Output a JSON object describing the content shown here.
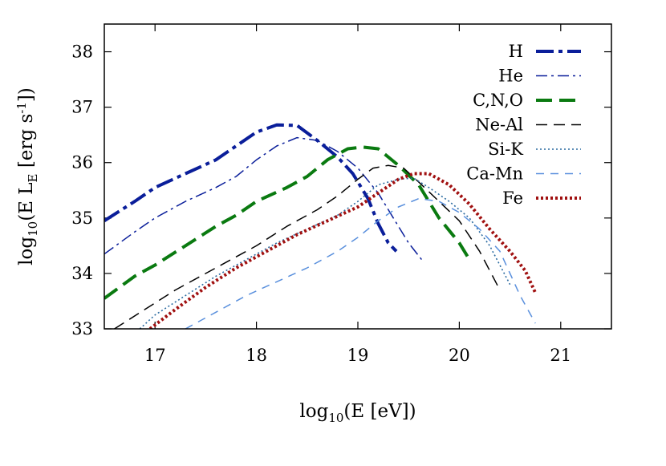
{
  "chart_data": {
    "type": "line",
    "title": "",
    "xlabel": {
      "pre": "log",
      "sub": "10",
      "post": "(E [eV])"
    },
    "ylabel": {
      "pre": "log",
      "sub": "10",
      "mid": "(E L",
      "sub2": "E",
      "post": " [erg s",
      "sup": "-1",
      "end": "])"
    },
    "xlim": [
      16.5,
      21.5
    ],
    "ylim": [
      33,
      38.5
    ],
    "xticks": [
      17,
      18,
      19,
      20,
      21
    ],
    "yticks": [
      33,
      34,
      35,
      36,
      37,
      38
    ],
    "xtick_labels": [
      "17",
      "18",
      "19",
      "20",
      "21"
    ],
    "ytick_labels": [
      "33",
      "34",
      "35",
      "36",
      "37",
      "38"
    ],
    "legend_position": "top-right",
    "series": [
      {
        "name": "H",
        "color": "#0a1e9a",
        "dash": "solid-dashdot-thick",
        "x": [
          16.5,
          16.8,
          17.0,
          17.3,
          17.6,
          17.8,
          18.0,
          18.2,
          18.4,
          18.6,
          18.8,
          18.95,
          19.1,
          19.2,
          19.3,
          19.38
        ],
        "y": [
          34.95,
          35.3,
          35.55,
          35.8,
          36.05,
          36.3,
          36.55,
          36.68,
          36.67,
          36.4,
          36.1,
          35.8,
          35.35,
          34.9,
          34.55,
          34.4
        ]
      },
      {
        "name": "He",
        "color": "#0a1e9a",
        "dash": "dashdot-thin",
        "x": [
          16.5,
          16.8,
          17.0,
          17.3,
          17.6,
          17.8,
          18.0,
          18.2,
          18.4,
          18.6,
          18.8,
          19.0,
          19.2,
          19.35,
          19.5,
          19.65
        ],
        "y": [
          34.35,
          34.75,
          35.0,
          35.3,
          35.55,
          35.75,
          36.05,
          36.3,
          36.45,
          36.4,
          36.2,
          35.9,
          35.45,
          35.0,
          34.55,
          34.2
        ]
      },
      {
        "name": "C,N,O",
        "color": "#0a7a10",
        "dash": "dashed-thick",
        "x": [
          16.5,
          16.8,
          17.0,
          17.3,
          17.6,
          17.8,
          18.0,
          18.3,
          18.5,
          18.7,
          18.9,
          19.05,
          19.2,
          19.4,
          19.6,
          19.8,
          20.0,
          20.1
        ],
        "y": [
          33.55,
          33.95,
          34.15,
          34.5,
          34.85,
          35.05,
          35.3,
          35.55,
          35.75,
          36.05,
          36.25,
          36.28,
          36.25,
          35.95,
          35.6,
          35.0,
          34.55,
          34.25
        ]
      },
      {
        "name": "Ne-Al",
        "color": "#000000",
        "dash": "dashed-thin",
        "x": [
          16.6,
          16.9,
          17.2,
          17.5,
          17.8,
          18.0,
          18.3,
          18.6,
          18.8,
          19.0,
          19.15,
          19.3,
          19.45,
          19.6,
          19.8,
          20.0,
          20.2,
          20.4
        ],
        "y": [
          33.0,
          33.35,
          33.7,
          34.0,
          34.3,
          34.5,
          34.85,
          35.15,
          35.4,
          35.7,
          35.9,
          35.95,
          35.9,
          35.65,
          35.3,
          34.95,
          34.4,
          33.7
        ]
      },
      {
        "name": "Si-K",
        "color": "#2a6aa0",
        "dash": "dotted-fine",
        "x": [
          16.85,
          17.0,
          17.3,
          17.6,
          17.9,
          18.2,
          18.5,
          18.8,
          19.0,
          19.2,
          19.4,
          19.55,
          19.7,
          19.9,
          20.1,
          20.3,
          20.5
        ],
        "y": [
          33.0,
          33.25,
          33.6,
          33.95,
          34.25,
          34.55,
          34.8,
          35.05,
          35.3,
          35.6,
          35.7,
          35.72,
          35.55,
          35.3,
          35.0,
          34.5,
          33.8
        ]
      },
      {
        "name": "Ca-Mn",
        "color": "#5a90dd",
        "dash": "dashed-light",
        "x": [
          17.3,
          17.6,
          17.9,
          18.2,
          18.5,
          18.8,
          19.0,
          19.2,
          19.4,
          19.6,
          19.8,
          20.0,
          20.2,
          20.4,
          20.6,
          20.75
        ],
        "y": [
          33.0,
          33.3,
          33.6,
          33.85,
          34.1,
          34.4,
          34.65,
          34.95,
          35.2,
          35.35,
          35.3,
          35.1,
          34.8,
          34.4,
          33.6,
          33.1
        ]
      },
      {
        "name": "Fe",
        "color": "#a01010",
        "dash": "dotted-thick",
        "x": [
          16.95,
          17.2,
          17.5,
          17.8,
          18.1,
          18.4,
          18.7,
          19.0,
          19.2,
          19.4,
          19.55,
          19.7,
          19.9,
          20.1,
          20.3,
          20.5,
          20.65,
          20.75
        ],
        "y": [
          33.0,
          33.35,
          33.75,
          34.1,
          34.4,
          34.7,
          34.95,
          35.2,
          35.45,
          35.7,
          35.8,
          35.8,
          35.6,
          35.25,
          34.8,
          34.4,
          34.05,
          33.65
        ]
      }
    ]
  }
}
